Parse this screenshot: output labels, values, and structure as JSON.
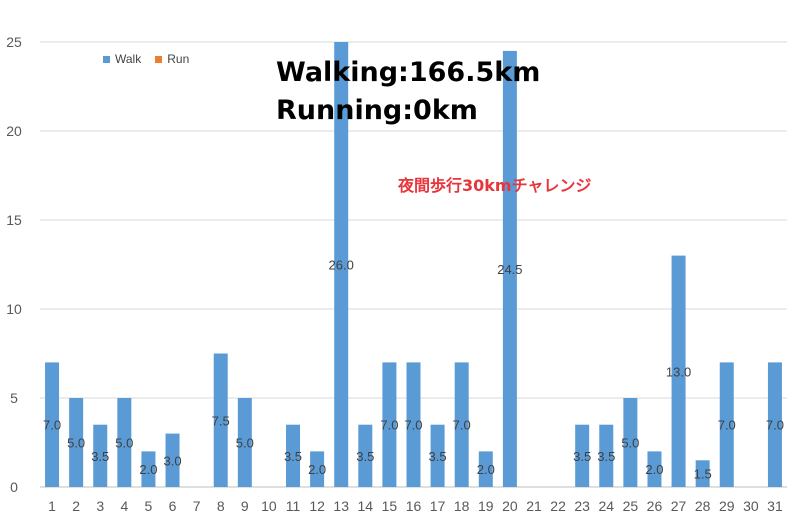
{
  "chart_data": {
    "type": "bar",
    "categories": [
      "1",
      "2",
      "3",
      "4",
      "5",
      "6",
      "7",
      "8",
      "9",
      "10",
      "11",
      "12",
      "13",
      "14",
      "15",
      "16",
      "17",
      "18",
      "19",
      "20",
      "21",
      "22",
      "23",
      "24",
      "25",
      "26",
      "27",
      "28",
      "29",
      "30",
      "31"
    ],
    "series": [
      {
        "name": "Walk",
        "color": "#5b9bd5",
        "values": [
          7.0,
          5.0,
          3.5,
          5.0,
          2.0,
          3.0,
          0,
          7.5,
          5.0,
          0,
          3.5,
          2.0,
          26.0,
          3.5,
          7.0,
          7.0,
          3.5,
          7.0,
          2.0,
          24.5,
          0,
          0,
          3.5,
          3.5,
          5.0,
          2.0,
          13.0,
          1.5,
          7.0,
          0,
          7.0
        ],
        "labels": [
          "7.0",
          "5.0",
          "3.5",
          "5.0",
          "2.0",
          "3.0",
          "",
          "7.5",
          "5.0",
          "",
          "3.5",
          "2.0",
          "26.0",
          "3.5",
          "7.0",
          "7.0",
          "3.5",
          "7.0",
          "2.0",
          "24.5",
          "",
          "",
          "3.5",
          "3.5",
          "5.0",
          "2.0",
          "13.0",
          "1.5",
          "7.0",
          "",
          "7.0"
        ]
      },
      {
        "name": "Run",
        "color": "#ed7d31",
        "values": [
          0,
          0,
          0,
          0,
          0,
          0,
          0,
          0,
          0,
          0,
          0,
          0,
          0,
          0,
          0,
          0,
          0,
          0,
          0,
          0,
          0,
          0,
          0,
          0,
          0,
          0,
          0,
          0,
          0,
          0,
          0
        ]
      }
    ],
    "yticks": [
      "0",
      "5",
      "10",
      "15",
      "20",
      "25"
    ],
    "ylim": [
      0,
      25
    ],
    "grid": true,
    "legend_position": "top-left",
    "title": "",
    "xlabel": "",
    "ylabel": ""
  },
  "summary": {
    "walking": "Walking:166.5km",
    "running": "Running:0km"
  },
  "annotation": "夜間歩行30kmチャレンジ"
}
